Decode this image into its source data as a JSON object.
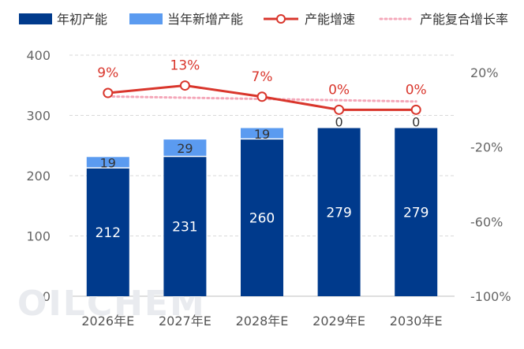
{
  "watermark": "OILCHEM",
  "chart_data": {
    "type": "bar",
    "stacked": true,
    "categories": [
      "2026年E",
      "2027年E",
      "2028年E",
      "2029年E",
      "2030年E"
    ],
    "series": [
      {
        "name": "年初产能",
        "kind": "bar",
        "axis": "left",
        "color": "#003a8c",
        "values": [
          212,
          231,
          260,
          279,
          279
        ]
      },
      {
        "name": "当年新增产能",
        "kind": "bar",
        "axis": "left",
        "color": "#5b9bf0",
        "values": [
          19,
          29,
          19,
          0,
          0
        ]
      },
      {
        "name": "产能增速",
        "kind": "line",
        "axis": "right",
        "color": "#d9362c",
        "values": [
          9,
          13,
          7,
          0,
          0
        ],
        "labels": [
          "9%",
          "13%",
          "7%",
          "0%",
          "0%"
        ]
      },
      {
        "name": "产能复合增长率",
        "kind": "dotted-line",
        "axis": "right",
        "color": "#f4a7b9",
        "values": [
          5.8,
          5.8,
          5.8,
          5.8,
          5.8
        ]
      }
    ],
    "left_axis": {
      "min": 0,
      "max": 400,
      "ticks": [
        0,
        100,
        200,
        300,
        400
      ],
      "tick_labels": [
        "0",
        "100",
        "200",
        "300",
        "400"
      ]
    },
    "right_axis": {
      "min": -100,
      "max": 30,
      "ticks": [
        20,
        -20,
        -60,
        -100
      ],
      "tick_labels": [
        "20%",
        "-20%",
        "-60%",
        "-100%"
      ]
    },
    "grid": true,
    "legend_position": "top"
  }
}
